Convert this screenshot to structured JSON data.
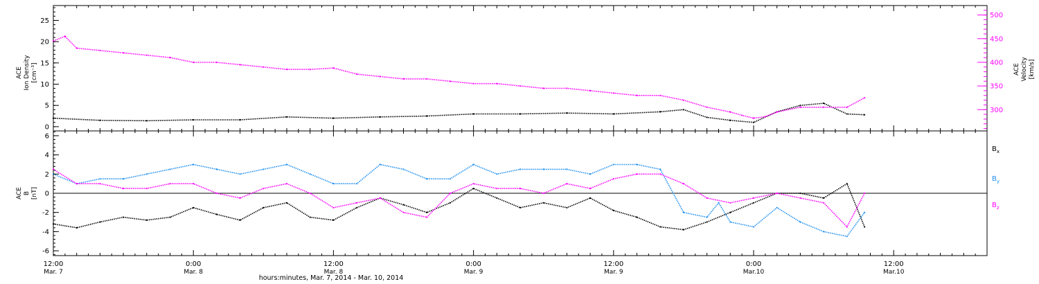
{
  "colors": {
    "black": "#000000",
    "magenta": "#ff00ff",
    "blue": "#1f8ff0"
  },
  "x_axis": {
    "title": "hours:minutes, Mar. 7, 2014 - Mar. 10, 2014",
    "ticks": [
      {
        "h": 0,
        "time": "12:00",
        "date": "Mar. 7"
      },
      {
        "h": 12,
        "time": "0:00",
        "date": "Mar. 8"
      },
      {
        "h": 24,
        "time": "12:00",
        "date": "Mar. 8"
      },
      {
        "h": 36,
        "time": "0:00",
        "date": "Mar. 9"
      },
      {
        "h": 48,
        "time": "12:00",
        "date": "Mar. 9"
      },
      {
        "h": 60,
        "time": "0:00",
        "date": "Mar.10"
      },
      {
        "h": 72,
        "time": "12:00",
        "date": "Mar.10"
      }
    ]
  },
  "chart_data": [
    {
      "type": "scatter",
      "x_unit": "hours since Mar. 7 12:00",
      "xlim": [
        0,
        80
      ],
      "left_axis": {
        "label_lines": [
          "ACE",
          "Ion Density",
          "[cm⁻³]"
        ],
        "ylim": [
          -1,
          28.5
        ],
        "ticks": [
          0,
          5,
          10,
          15,
          20,
          25
        ]
      },
      "right_axis": {
        "label_lines": [
          "ACE",
          "Velocity",
          "[km/s]"
        ],
        "ylim": [
          255,
          520
        ],
        "ticks": [
          300,
          350,
          400,
          450,
          500
        ]
      },
      "series": [
        {
          "name": "Ion Density",
          "color": "#000000",
          "axis": "left",
          "x": [
            0,
            4,
            8,
            12,
            16,
            20,
            24,
            28,
            32,
            36,
            40,
            44,
            48,
            52,
            54,
            56,
            58,
            60,
            62,
            64,
            66,
            68,
            69.5
          ],
          "y": [
            2,
            1.5,
            1.4,
            1.6,
            1.6,
            2.3,
            2,
            2.3,
            2.5,
            3,
            3,
            3.2,
            3,
            3.5,
            4,
            2.2,
            1.5,
            1,
            3.5,
            5,
            5.5,
            3,
            2.8
          ]
        },
        {
          "name": "Velocity",
          "color": "#ff00ff",
          "axis": "right",
          "x": [
            0,
            1,
            2,
            4,
            6,
            8,
            10,
            12,
            14,
            16,
            18,
            20,
            22,
            24,
            26,
            28,
            30,
            32,
            34,
            36,
            38,
            40,
            42,
            44,
            46,
            48,
            50,
            52,
            54,
            56,
            58,
            59,
            60,
            61,
            62,
            64,
            66,
            68,
            69.5
          ],
          "y": [
            445,
            455,
            430,
            425,
            420,
            415,
            410,
            400,
            400,
            395,
            390,
            385,
            385,
            388,
            375,
            370,
            365,
            365,
            360,
            355,
            355,
            350,
            345,
            345,
            340,
            335,
            330,
            330,
            320,
            305,
            295,
            288,
            282,
            285,
            295,
            305,
            305,
            305,
            325
          ]
        }
      ]
    },
    {
      "type": "scatter",
      "x_unit": "hours since Mar. 7 12:00",
      "xlim": [
        0,
        80
      ],
      "left_axis": {
        "label_lines": [
          "ACE",
          "B",
          "[nT]"
        ],
        "ylim": [
          -6.5,
          6.5
        ],
        "ticks": [
          -6,
          -4,
          -2,
          0,
          2,
          4,
          6
        ]
      },
      "legend": {
        "position": "right",
        "entries": [
          {
            "main": "B",
            "sub": "x",
            "color": "#000000"
          },
          {
            "main": "B",
            "sub": "y",
            "color": "#1f8ff0"
          },
          {
            "main": "B",
            "sub": "z",
            "color": "#ff00ff"
          }
        ]
      },
      "series": [
        {
          "name": "Bx",
          "color": "#000000",
          "x": [
            0,
            2,
            4,
            6,
            8,
            10,
            12,
            14,
            16,
            18,
            20,
            22,
            24,
            26,
            28,
            30,
            32,
            34,
            36,
            38,
            40,
            42,
            44,
            46,
            48,
            50,
            52,
            54,
            56,
            58,
            60,
            62,
            64,
            66,
            68,
            69.5
          ],
          "y": [
            -3.2,
            -3.6,
            -3,
            -2.5,
            -2.8,
            -2.5,
            -1.5,
            -2.2,
            -2.8,
            -1.5,
            -1,
            -2.5,
            -2.8,
            -1.5,
            -0.5,
            -1.2,
            -2,
            -1,
            0.5,
            -0.5,
            -1.5,
            -1,
            -1.5,
            -0.5,
            -1.8,
            -2.5,
            -3.5,
            -3.8,
            -3,
            -2,
            -1,
            0,
            0,
            -0.5,
            1,
            -3.5
          ]
        },
        {
          "name": "By",
          "color": "#1f8ff0",
          "x": [
            0,
            2,
            4,
            6,
            8,
            10,
            12,
            14,
            16,
            18,
            20,
            22,
            24,
            26,
            28,
            30,
            32,
            34,
            36,
            38,
            40,
            42,
            44,
            46,
            48,
            50,
            52,
            54,
            56,
            57,
            58,
            60,
            62,
            64,
            66,
            68,
            69.5
          ],
          "y": [
            2,
            1,
            1.5,
            1.5,
            2,
            2.5,
            3,
            2.5,
            2,
            2.5,
            3,
            2,
            1,
            1,
            3,
            2.5,
            1.5,
            1.5,
            3,
            2,
            2.5,
            2.5,
            2.5,
            2,
            3,
            3,
            2.5,
            -2,
            -2.5,
            -1,
            -3,
            -3.5,
            -1.5,
            -3,
            -4,
            -4.5,
            -2
          ]
        },
        {
          "name": "Bz",
          "color": "#ff00ff",
          "x": [
            0,
            2,
            4,
            6,
            8,
            10,
            12,
            14,
            16,
            18,
            20,
            22,
            24,
            26,
            28,
            30,
            32,
            34,
            36,
            38,
            40,
            42,
            44,
            46,
            48,
            50,
            52,
            54,
            56,
            58,
            60,
            62,
            64,
            66,
            68,
            69.5
          ],
          "y": [
            2.5,
            1,
            1,
            0.5,
            0.5,
            1,
            1,
            0,
            -0.5,
            0.5,
            1,
            0,
            -1.5,
            -1,
            -0.5,
            -2,
            -2.5,
            0,
            1,
            0.5,
            0.5,
            0,
            1,
            0.5,
            1.5,
            2,
            2,
            1,
            -0.5,
            -1,
            -0.5,
            0,
            -0.5,
            -1,
            -3.5,
            0
          ]
        }
      ]
    }
  ]
}
